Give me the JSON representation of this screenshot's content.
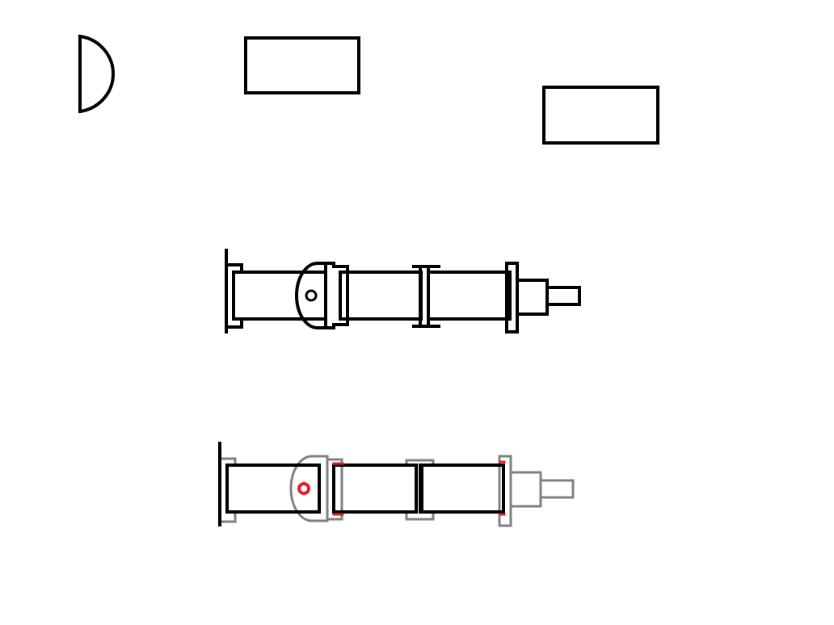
{
  "colors": {
    "background": "#ffffff",
    "primary_stroke": "#000000",
    "faded_stroke": "#808080",
    "highlight": "#ed1c24"
  },
  "components": [
    "half-disc-part",
    "rectangle-part-a",
    "rectangle-part-b"
  ],
  "assemblies": [
    "assembly-full",
    "assembly-highlighted"
  ]
}
